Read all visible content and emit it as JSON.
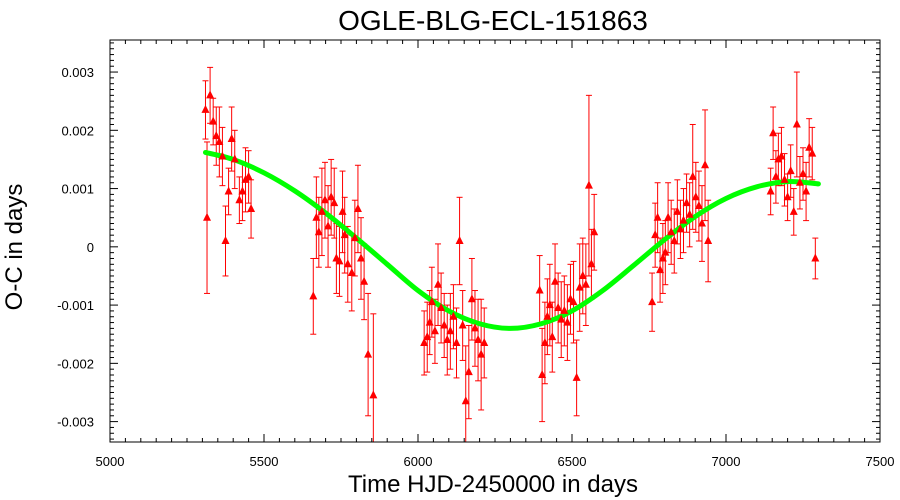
{
  "chart_data": {
    "type": "scatter",
    "title": "OGLE-BLG-ECL-151863",
    "xlabel": "Time HJD-2450000 in days",
    "ylabel": "O-C in days",
    "xlim": [
      5000,
      7500
    ],
    "ylim": [
      -0.00335,
      0.00355
    ],
    "xticks": [
      5000,
      5500,
      6000,
      6500,
      7000,
      7500
    ],
    "xtick_labels": [
      "5000",
      "5500",
      "6000",
      "6500",
      "7000",
      "7500"
    ],
    "yticks": [
      -0.003,
      -0.002,
      -0.001,
      0,
      0.001,
      0.002,
      0.003
    ],
    "ytick_labels": [
      "-0.003",
      "-0.002",
      "-0.001",
      "0",
      "0.001",
      "0.002",
      "0.003"
    ],
    "grid": false,
    "colors": {
      "points": "#ff0000",
      "fit": "#00ff00",
      "frame": "#000000"
    },
    "series": [
      {
        "kind": "points_with_errorbars",
        "marker": "triangle",
        "points": [
          {
            "x": 5310,
            "y": 0.00235,
            "err": 0.0005
          },
          {
            "x": 5315,
            "y": 0.0005,
            "err": 0.0013
          },
          {
            "x": 5325,
            "y": 0.0026,
            "err": 0.00048
          },
          {
            "x": 5335,
            "y": 0.00215,
            "err": 0.0004
          },
          {
            "x": 5345,
            "y": 0.0019,
            "err": 0.0005
          },
          {
            "x": 5355,
            "y": 0.0018,
            "err": 0.0006
          },
          {
            "x": 5365,
            "y": 0.00155,
            "err": 0.0005
          },
          {
            "x": 5375,
            "y": 0.0001,
            "err": 0.0006
          },
          {
            "x": 5385,
            "y": 0.00095,
            "err": 0.0004
          },
          {
            "x": 5395,
            "y": 0.00185,
            "err": 0.00055
          },
          {
            "x": 5405,
            "y": 0.0015,
            "err": 0.0005
          },
          {
            "x": 5420,
            "y": 0.0008,
            "err": 0.0004
          },
          {
            "x": 5430,
            "y": 0.00095,
            "err": 0.0005
          },
          {
            "x": 5440,
            "y": 0.00115,
            "err": 0.00055
          },
          {
            "x": 5450,
            "y": 0.0012,
            "err": 0.00045
          },
          {
            "x": 5458,
            "y": 0.00065,
            "err": 0.0005
          },
          {
            "x": 5660,
            "y": -0.00085,
            "err": 0.00065
          },
          {
            "x": 5670,
            "y": 0.0005,
            "err": 0.0007
          },
          {
            "x": 5678,
            "y": 0.00025,
            "err": 0.0006
          },
          {
            "x": 5688,
            "y": 0.0006,
            "err": 0.00075
          },
          {
            "x": 5698,
            "y": 0.0008,
            "err": 0.00065
          },
          {
            "x": 5708,
            "y": 0.00035,
            "err": 0.0007
          },
          {
            "x": 5718,
            "y": 0.00085,
            "err": 0.00065
          },
          {
            "x": 5728,
            "y": 0.00075,
            "err": 0.0006
          },
          {
            "x": 5735,
            "y": -0.0002,
            "err": 0.0006
          },
          {
            "x": 5745,
            "y": -0.00025,
            "err": 0.0006
          },
          {
            "x": 5755,
            "y": 0.0006,
            "err": 0.0007
          },
          {
            "x": 5762,
            "y": 0.0002,
            "err": 0.00065
          },
          {
            "x": 5772,
            "y": -0.0003,
            "err": 0.00065
          },
          {
            "x": 5785,
            "y": -0.00045,
            "err": 0.00065
          },
          {
            "x": 5795,
            "y": 0.00015,
            "err": 0.00065
          },
          {
            "x": 5805,
            "y": 0.00065,
            "err": 0.00075
          },
          {
            "x": 5815,
            "y": -0.0002,
            "err": 0.0007
          },
          {
            "x": 5825,
            "y": -0.0006,
            "err": 0.00065
          },
          {
            "x": 5838,
            "y": -0.00185,
            "err": 0.00105
          },
          {
            "x": 5855,
            "y": -0.00255,
            "err": 0.0014
          },
          {
            "x": 6020,
            "y": -0.00165,
            "err": 0.00055
          },
          {
            "x": 6030,
            "y": -0.00155,
            "err": 0.0006
          },
          {
            "x": 6038,
            "y": -0.0013,
            "err": 0.00055
          },
          {
            "x": 6045,
            "y": -0.00095,
            "err": 0.0006
          },
          {
            "x": 6055,
            "y": -0.00145,
            "err": 0.00055
          },
          {
            "x": 6065,
            "y": -0.00065,
            "err": 0.0007
          },
          {
            "x": 6075,
            "y": -0.00105,
            "err": 0.0006
          },
          {
            "x": 6085,
            "y": -0.00135,
            "err": 0.00055
          },
          {
            "x": 6095,
            "y": -0.0016,
            "err": 0.0006
          },
          {
            "x": 6105,
            "y": -0.00145,
            "err": 0.00065
          },
          {
            "x": 6115,
            "y": -0.0012,
            "err": 0.00055
          },
          {
            "x": 6125,
            "y": -0.00165,
            "err": 0.0006
          },
          {
            "x": 6135,
            "y": 0.0001,
            "err": 0.00075
          },
          {
            "x": 6145,
            "y": -0.00135,
            "err": 0.0006
          },
          {
            "x": 6155,
            "y": -0.00265,
            "err": 0.00095
          },
          {
            "x": 6165,
            "y": -0.00215,
            "err": 0.0008
          },
          {
            "x": 6175,
            "y": -0.0009,
            "err": 0.0007
          },
          {
            "x": 6185,
            "y": -0.0014,
            "err": 0.00065
          },
          {
            "x": 6195,
            "y": -0.0016,
            "err": 0.0007
          },
          {
            "x": 6205,
            "y": -0.00185,
            "err": 0.00095
          },
          {
            "x": 6215,
            "y": -0.00165,
            "err": 0.0006
          },
          {
            "x": 6395,
            "y": -0.00075,
            "err": 0.0006
          },
          {
            "x": 6403,
            "y": -0.0022,
            "err": 0.0008
          },
          {
            "x": 6412,
            "y": -0.00165,
            "err": 0.0007
          },
          {
            "x": 6420,
            "y": -0.0012,
            "err": 0.00065
          },
          {
            "x": 6428,
            "y": -0.001,
            "err": 0.0007
          },
          {
            "x": 6436,
            "y": -0.00155,
            "err": 0.0006
          },
          {
            "x": 6445,
            "y": -0.0006,
            "err": 0.00065
          },
          {
            "x": 6455,
            "y": -0.00105,
            "err": 0.0006
          },
          {
            "x": 6465,
            "y": -0.00125,
            "err": 0.00065
          },
          {
            "x": 6475,
            "y": -0.0011,
            "err": 0.0006
          },
          {
            "x": 6485,
            "y": -0.0013,
            "err": 0.00065
          },
          {
            "x": 6495,
            "y": -0.0009,
            "err": 0.0006
          },
          {
            "x": 6505,
            "y": -0.00095,
            "err": 0.0007
          },
          {
            "x": 6515,
            "y": -0.00225,
            "err": 0.00065
          },
          {
            "x": 6525,
            "y": -0.0007,
            "err": 0.00075
          },
          {
            "x": 6535,
            "y": -0.0005,
            "err": 0.00065
          },
          {
            "x": 6545,
            "y": -0.00065,
            "err": 0.0007
          },
          {
            "x": 6555,
            "y": 0.00105,
            "err": 0.00155
          },
          {
            "x": 6563,
            "y": -0.0003,
            "err": 0.0006
          },
          {
            "x": 6572,
            "y": 0.00025,
            "err": 0.00065
          },
          {
            "x": 6760,
            "y": -0.00095,
            "err": 0.0005
          },
          {
            "x": 6770,
            "y": 0.0002,
            "err": 0.00055
          },
          {
            "x": 6778,
            "y": 0.0005,
            "err": 0.0006
          },
          {
            "x": 6786,
            "y": -0.0004,
            "err": 0.00055
          },
          {
            "x": 6795,
            "y": -0.0002,
            "err": 0.0006
          },
          {
            "x": 6803,
            "y": -0.0001,
            "err": 0.00055
          },
          {
            "x": 6812,
            "y": 0.0005,
            "err": 0.0006
          },
          {
            "x": 6822,
            "y": 0.00025,
            "err": 0.00055
          },
          {
            "x": 6832,
            "y": 0.0001,
            "err": 0.00055
          },
          {
            "x": 6842,
            "y": 0.0006,
            "err": 0.00055
          },
          {
            "x": 6852,
            "y": 0.0003,
            "err": 0.0005
          },
          {
            "x": 6862,
            "y": 0.00045,
            "err": 0.00055
          },
          {
            "x": 6872,
            "y": 0.00075,
            "err": 0.0005
          },
          {
            "x": 6882,
            "y": 0.00055,
            "err": 0.00055
          },
          {
            "x": 6892,
            "y": 0.0012,
            "err": 0.0009
          },
          {
            "x": 6902,
            "y": 0.00085,
            "err": 0.0006
          },
          {
            "x": 6912,
            "y": 0.0007,
            "err": 0.0006
          },
          {
            "x": 6922,
            "y": 0.0004,
            "err": 0.00065
          },
          {
            "x": 6932,
            "y": 0.0014,
            "err": 0.00095
          },
          {
            "x": 6942,
            "y": 0.0001,
            "err": 0.0007
          },
          {
            "x": 7145,
            "y": 0.00095,
            "err": 0.0004
          },
          {
            "x": 7153,
            "y": 0.00195,
            "err": 0.00045
          },
          {
            "x": 7162,
            "y": 0.0012,
            "err": 0.00045
          },
          {
            "x": 7170,
            "y": 0.0015,
            "err": 0.00045
          },
          {
            "x": 7180,
            "y": 0.00155,
            "err": 0.0005
          },
          {
            "x": 7190,
            "y": 0.00115,
            "err": 0.00045
          },
          {
            "x": 7200,
            "y": 0.00085,
            "err": 0.0004
          },
          {
            "x": 7210,
            "y": 0.0013,
            "err": 0.00045
          },
          {
            "x": 7220,
            "y": 0.0006,
            "err": 0.0004
          },
          {
            "x": 7230,
            "y": 0.0021,
            "err": 0.0009
          },
          {
            "x": 7240,
            "y": 0.0011,
            "err": 0.00045
          },
          {
            "x": 7250,
            "y": 0.00125,
            "err": 0.00045
          },
          {
            "x": 7260,
            "y": 0.00095,
            "err": 0.0005
          },
          {
            "x": 7270,
            "y": 0.0017,
            "err": 0.0005
          },
          {
            "x": 7280,
            "y": 0.0016,
            "err": 0.00045
          },
          {
            "x": 7290,
            "y": -0.0002,
            "err": 0.00035
          }
        ]
      },
      {
        "kind": "fit_curve",
        "x": [
          5310,
          5400,
          5500,
          5600,
          5700,
          5800,
          5900,
          6000,
          6100,
          6200,
          6300,
          6400,
          6500,
          6600,
          6700,
          6800,
          6900,
          7000,
          7100,
          7200,
          7300
        ],
        "y": [
          0.00162,
          0.0015,
          0.00127,
          0.00096,
          0.00058,
          0.00015,
          -0.0003,
          -0.00075,
          -0.0011,
          -0.00132,
          -0.0014,
          -0.00132,
          -0.0011,
          -0.00075,
          -0.00032,
          0.00012,
          0.00052,
          0.00083,
          0.00103,
          0.00112,
          0.00108
        ]
      }
    ]
  }
}
